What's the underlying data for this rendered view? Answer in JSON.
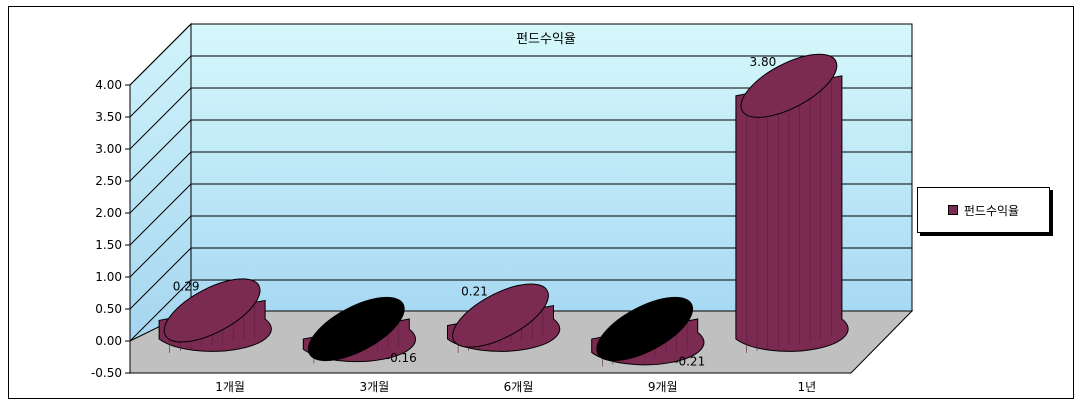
{
  "chart_data": {
    "type": "bar",
    "title": "펀드수익율",
    "categories": [
      "1개월",
      "3개월",
      "6개월",
      "9개월",
      "1년"
    ],
    "series": [
      {
        "name": "펀드수익율",
        "values": [
          0.29,
          -0.16,
          0.21,
          -0.21,
          3.8
        ]
      }
    ],
    "value_labels": [
      "0.29",
      "-0.16",
      "0.21",
      "-0.21",
      "3.80"
    ],
    "ylim": [
      -0.5,
      4.0
    ],
    "yticks": [
      "4.00",
      "3.50",
      "3.00",
      "2.50",
      "2.00",
      "1.50",
      "1.00",
      "0.50",
      "0.00",
      "-0.50"
    ],
    "grid": true,
    "legend_position": "right",
    "style": "3d-cylinder"
  },
  "colors": {
    "bar_fill": "#7b2a52",
    "bar_top": "#7b2a52",
    "bar_negative_top": "#000000",
    "back_wall_top": "#d4f7fb",
    "back_wall_bottom": "#aaddf5",
    "floor": "#c0c0c0"
  }
}
